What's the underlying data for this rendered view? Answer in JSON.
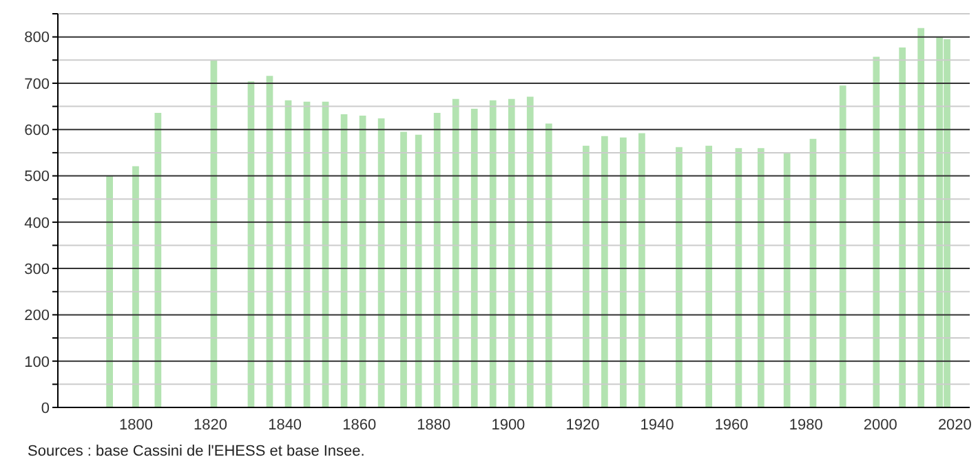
{
  "chart_data": {
    "type": "bar",
    "x": [
      1793,
      1800,
      1806,
      1821,
      1831,
      1836,
      1841,
      1846,
      1851,
      1856,
      1861,
      1866,
      1872,
      1876,
      1881,
      1886,
      1891,
      1896,
      1901,
      1906,
      1911,
      1921,
      1926,
      1931,
      1936,
      1946,
      1954,
      1962,
      1968,
      1975,
      1982,
      1990,
      1999,
      2006,
      2011,
      2016,
      2018
    ],
    "values": [
      500,
      521,
      636,
      749,
      704,
      716,
      663,
      660,
      660,
      633,
      630,
      624,
      595,
      589,
      636,
      666,
      645,
      663,
      666,
      671,
      613,
      565,
      586,
      583,
      592,
      562,
      565,
      560,
      560,
      549,
      580,
      695,
      757,
      777,
      819,
      799,
      795
    ],
    "color": "#b3e3b1",
    "xlim": [
      1779,
      2024
    ],
    "xticks": [
      1800,
      1820,
      1840,
      1860,
      1880,
      1900,
      1920,
      1940,
      1960,
      1980,
      2000,
      2020
    ],
    "ylim": [
      0,
      850
    ],
    "yticks": [
      0,
      {
        "value": 50,
        "label": null
      },
      100,
      {
        "value": 150,
        "label": null
      },
      200,
      {
        "value": 250,
        "label": null
      },
      300,
      {
        "value": 350,
        "label": null
      },
      400,
      {
        "value": 450,
        "label": null
      },
      500,
      {
        "value": 550,
        "label": null
      },
      600,
      {
        "value": 650,
        "label": null
      },
      700,
      {
        "value": 750,
        "label": null
      },
      800,
      {
        "value": 850,
        "label": null
      }
    ],
    "grid": true,
    "annotations": [
      "Sources : base Cassini de l'EHESS et base Insee."
    ]
  }
}
